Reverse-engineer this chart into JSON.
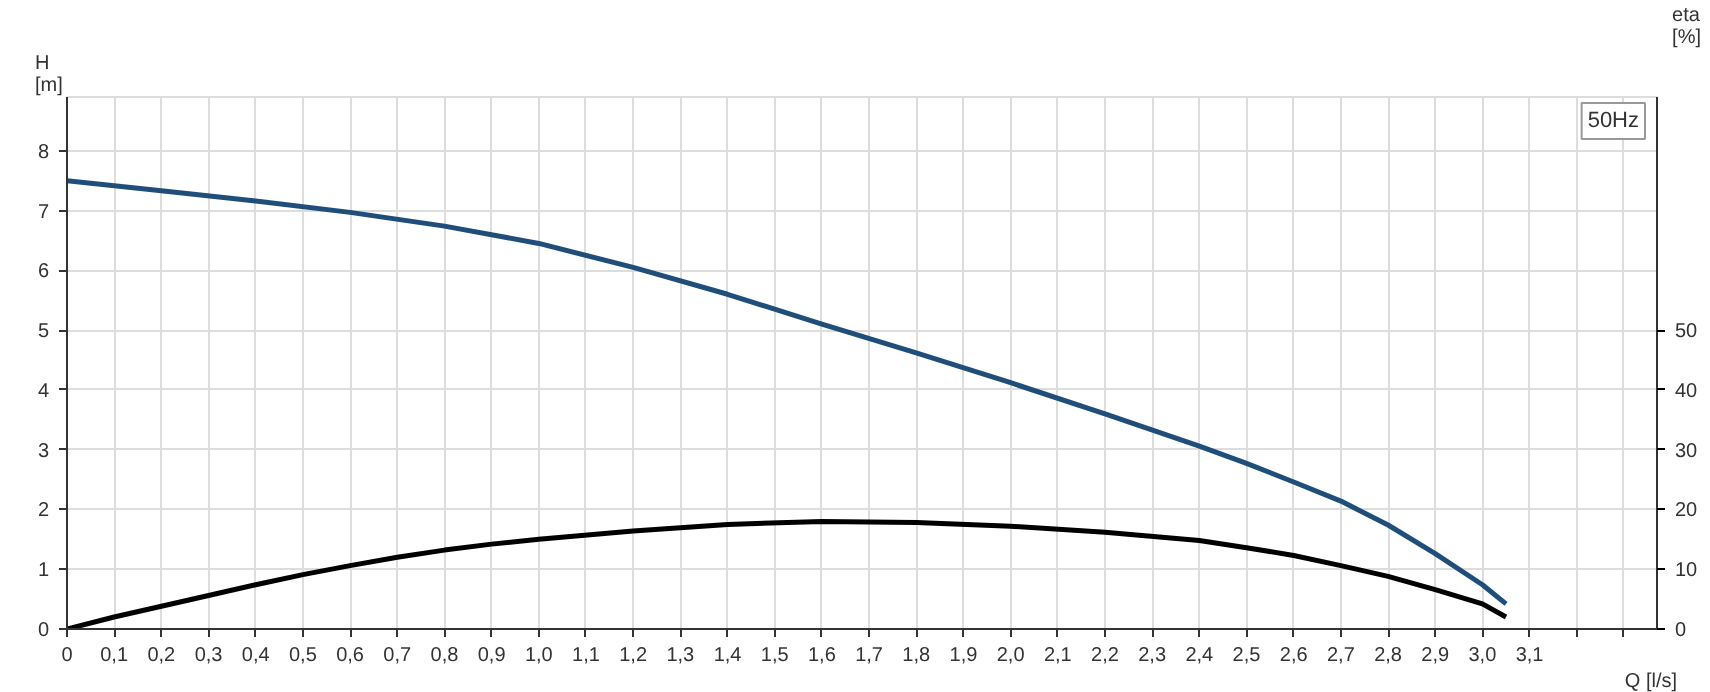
{
  "chart_data": {
    "type": "line",
    "xlabel": "Q [l/s]",
    "ylabel": "H\n[m]",
    "y2label": "eta\n[%]",
    "annotations": [
      "50Hz"
    ],
    "xlim": [
      0,
      3.37
    ],
    "ylim": [
      0,
      8.9
    ],
    "y2lim": [
      0,
      89
    ],
    "xticks": [
      0,
      {
        "value": 0.1,
        "label": "0,1"
      },
      {
        "value": 0.2,
        "label": "0,2"
      },
      {
        "value": 0.3,
        "label": "0,3"
      },
      {
        "value": 0.4,
        "label": "0,4"
      },
      {
        "value": 0.5,
        "label": "0,5"
      },
      {
        "value": 0.6,
        "label": "0,6"
      },
      {
        "value": 0.7,
        "label": "0,7"
      },
      {
        "value": 0.8,
        "label": "0,8"
      },
      {
        "value": 0.9,
        "label": "0,9"
      },
      {
        "value": 1.0,
        "label": "1,0"
      },
      {
        "value": 1.1,
        "label": "1,1"
      },
      {
        "value": 1.2,
        "label": "1,2"
      },
      {
        "value": 1.3,
        "label": "1,3"
      },
      {
        "value": 1.4,
        "label": "1,4"
      },
      {
        "value": 1.5,
        "label": "1,5"
      },
      {
        "value": 1.6,
        "label": "1,6"
      },
      {
        "value": 1.7,
        "label": "1,7"
      },
      {
        "value": 1.8,
        "label": "1,8"
      },
      {
        "value": 1.9,
        "label": "1,9"
      },
      {
        "value": 2.0,
        "label": "2,0"
      },
      {
        "value": 2.1,
        "label": "2,1"
      },
      {
        "value": 2.2,
        "label": "2,2"
      },
      {
        "value": 2.3,
        "label": "2,3"
      },
      {
        "value": 2.4,
        "label": "2,4"
      },
      {
        "value": 2.5,
        "label": "2,5"
      },
      {
        "value": 2.6,
        "label": "2,6"
      },
      {
        "value": 2.7,
        "label": "2,7"
      },
      {
        "value": 2.8,
        "label": "2,8"
      },
      {
        "value": 2.9,
        "label": "2,9"
      },
      {
        "value": 3.0,
        "label": "3,0"
      },
      {
        "value": 3.1,
        "label": "3,1"
      },
      {
        "value": 3.2,
        "label": null
      },
      {
        "value": 3.3,
        "label": null
      }
    ],
    "yticks": [
      0,
      1,
      2,
      3,
      4,
      5,
      6,
      7,
      8
    ],
    "y2ticks": [
      0,
      10,
      20,
      30,
      40,
      50
    ],
    "grid": true,
    "line_style": "solid",
    "marker": "none",
    "series": [
      {
        "color": "#1f4e7a",
        "x": [
          0,
          0.2,
          0.4,
          0.6,
          0.8,
          1.0,
          1.2,
          1.4,
          1.6,
          1.8,
          2.0,
          2.2,
          2.4,
          2.5,
          2.6,
          2.7,
          2.8,
          2.9,
          3.0,
          3.05
        ],
        "values": [
          7.5,
          7.33,
          7.16,
          6.97,
          6.74,
          6.45,
          6.05,
          5.6,
          5.1,
          4.62,
          4.12,
          3.6,
          3.06,
          2.77,
          2.46,
          2.14,
          1.74,
          1.26,
          0.74,
          0.42
        ]
      },
      {
        "color": "#000000",
        "axis": "y2",
        "x": [
          0,
          0.1,
          0.2,
          0.3,
          0.4,
          0.5,
          0.6,
          0.7,
          0.8,
          0.9,
          1.0,
          1.2,
          1.4,
          1.6,
          1.8,
          2.0,
          2.2,
          2.4,
          2.5,
          2.6,
          2.7,
          2.8,
          2.9,
          3.0,
          3.05
        ],
        "values": [
          0,
          2,
          3.8,
          5.6,
          7.4,
          9.1,
          10.6,
          12,
          13.2,
          14.2,
          15,
          16.4,
          17.5,
          18,
          17.8,
          17.2,
          16.2,
          14.8,
          13.6,
          12.3,
          10.6,
          8.8,
          6.6,
          4.2,
          2.0
        ]
      }
    ]
  }
}
